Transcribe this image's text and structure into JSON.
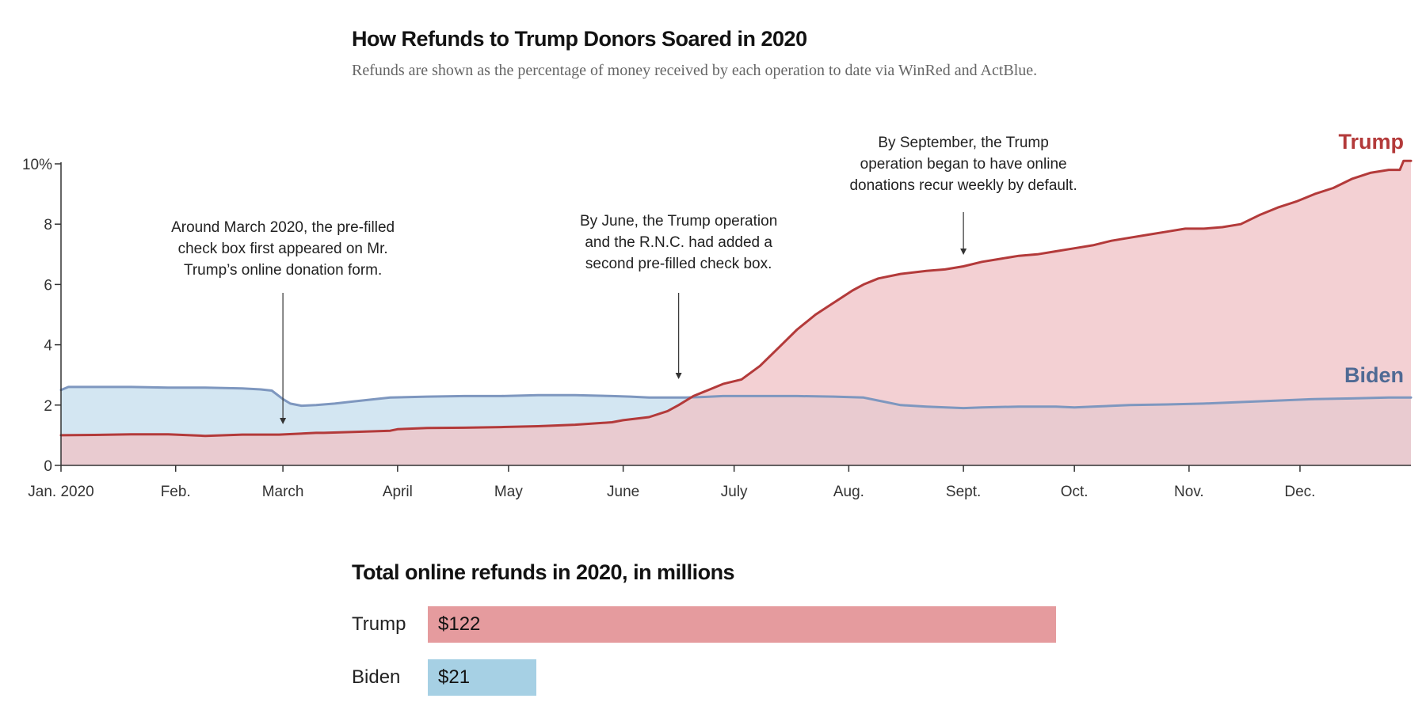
{
  "chart_data": [
    {
      "type": "area",
      "title": "How Refunds to Trump Donors Soared in 2020",
      "subtitle": "Refunds are shown as the percentage of money received by each operation to date via WinRed and ActBlue.",
      "xlabel": "",
      "ylabel": "",
      "y_unit": "%",
      "ylim": [
        0,
        10
      ],
      "yticks": [
        0,
        2,
        4,
        6,
        8,
        10
      ],
      "ytick_labels": [
        "0",
        "2",
        "4",
        "6",
        "8",
        "10%"
      ],
      "xlim": [
        1,
        366
      ],
      "xticks": [
        1,
        32,
        61,
        92,
        122,
        153,
        183,
        214,
        245,
        275,
        306,
        336
      ],
      "xtick_labels": [
        "Jan. 2020",
        "Feb.",
        "March",
        "April",
        "May",
        "June",
        "July",
        "Aug.",
        "Sept.",
        "Oct.",
        "Nov.",
        "Dec."
      ],
      "grid": false,
      "series": [
        {
          "name": "Trump",
          "color": "#b33a3a",
          "fill": "#f0c3c6",
          "x": [
            1,
            10,
            20,
            30,
            40,
            50,
            60,
            70,
            72,
            80,
            90,
            92,
            100,
            110,
            120,
            130,
            140,
            150,
            153,
            160,
            165,
            168,
            172,
            175,
            180,
            185,
            190,
            195,
            200,
            205,
            210,
            215,
            218,
            222,
            228,
            235,
            240,
            245,
            250,
            255,
            260,
            265,
            270,
            275,
            280,
            285,
            290,
            295,
            300,
            305,
            310,
            315,
            320,
            325,
            330,
            335,
            340,
            345,
            350,
            355,
            360,
            363,
            364,
            366
          ],
          "values": [
            1.0,
            1.01,
            1.03,
            1.03,
            0.98,
            1.02,
            1.02,
            1.08,
            1.08,
            1.11,
            1.15,
            1.2,
            1.24,
            1.25,
            1.27,
            1.3,
            1.35,
            1.43,
            1.5,
            1.6,
            1.8,
            2.0,
            2.3,
            2.45,
            2.7,
            2.85,
            3.3,
            3.9,
            4.5,
            5.0,
            5.4,
            5.8,
            6.0,
            6.2,
            6.35,
            6.45,
            6.5,
            6.6,
            6.75,
            6.85,
            6.95,
            7.0,
            7.1,
            7.2,
            7.3,
            7.45,
            7.55,
            7.65,
            7.75,
            7.85,
            7.85,
            7.9,
            8.0,
            8.3,
            8.55,
            8.75,
            9.0,
            9.2,
            9.5,
            9.7,
            9.8,
            9.8,
            10.1,
            10.1
          ]
        },
        {
          "name": "Biden",
          "color": "#7e97bf",
          "fill": "#c6dfee",
          "x": [
            1,
            3,
            10,
            20,
            30,
            40,
            50,
            55,
            58,
            61,
            63,
            66,
            70,
            75,
            80,
            90,
            100,
            110,
            120,
            130,
            140,
            150,
            155,
            160,
            165,
            170,
            175,
            180,
            190,
            200,
            210,
            218,
            222,
            228,
            235,
            245,
            250,
            260,
            270,
            275,
            280,
            290,
            300,
            310,
            320,
            330,
            340,
            350,
            360,
            366
          ],
          "values": [
            2.5,
            2.6,
            2.6,
            2.6,
            2.58,
            2.58,
            2.55,
            2.52,
            2.48,
            2.2,
            2.05,
            1.98,
            2.0,
            2.05,
            2.12,
            2.25,
            2.28,
            2.3,
            2.3,
            2.33,
            2.33,
            2.3,
            2.28,
            2.25,
            2.25,
            2.25,
            2.27,
            2.3,
            2.3,
            2.3,
            2.28,
            2.25,
            2.15,
            2.0,
            1.95,
            1.9,
            1.92,
            1.95,
            1.95,
            1.92,
            1.95,
            2.0,
            2.02,
            2.05,
            2.1,
            2.15,
            2.2,
            2.22,
            2.25,
            2.25
          ]
        }
      ],
      "annotations": [
        {
          "text": [
            "Around March 2020, the pre-filled",
            "check box first appeared on Mr.",
            "Trump’s online donation form."
          ],
          "x": 61
        },
        {
          "text": [
            "By June, the Trump operation",
            "and the R.N.C. had added a",
            "second pre-filled check box."
          ],
          "x": 168
        },
        {
          "text": [
            "By September, the Trump",
            "operation began to have online",
            "donations recur weekly by default."
          ],
          "x": 245
        }
      ]
    },
    {
      "type": "bar",
      "title": "Total online refunds in 2020, in millions",
      "categories": [
        "Trump",
        "Biden"
      ],
      "values": [
        122,
        21
      ],
      "value_labels": [
        "$122",
        "$21"
      ],
      "colors": [
        "#e59b9e",
        "#a6d0e4"
      ]
    }
  ]
}
